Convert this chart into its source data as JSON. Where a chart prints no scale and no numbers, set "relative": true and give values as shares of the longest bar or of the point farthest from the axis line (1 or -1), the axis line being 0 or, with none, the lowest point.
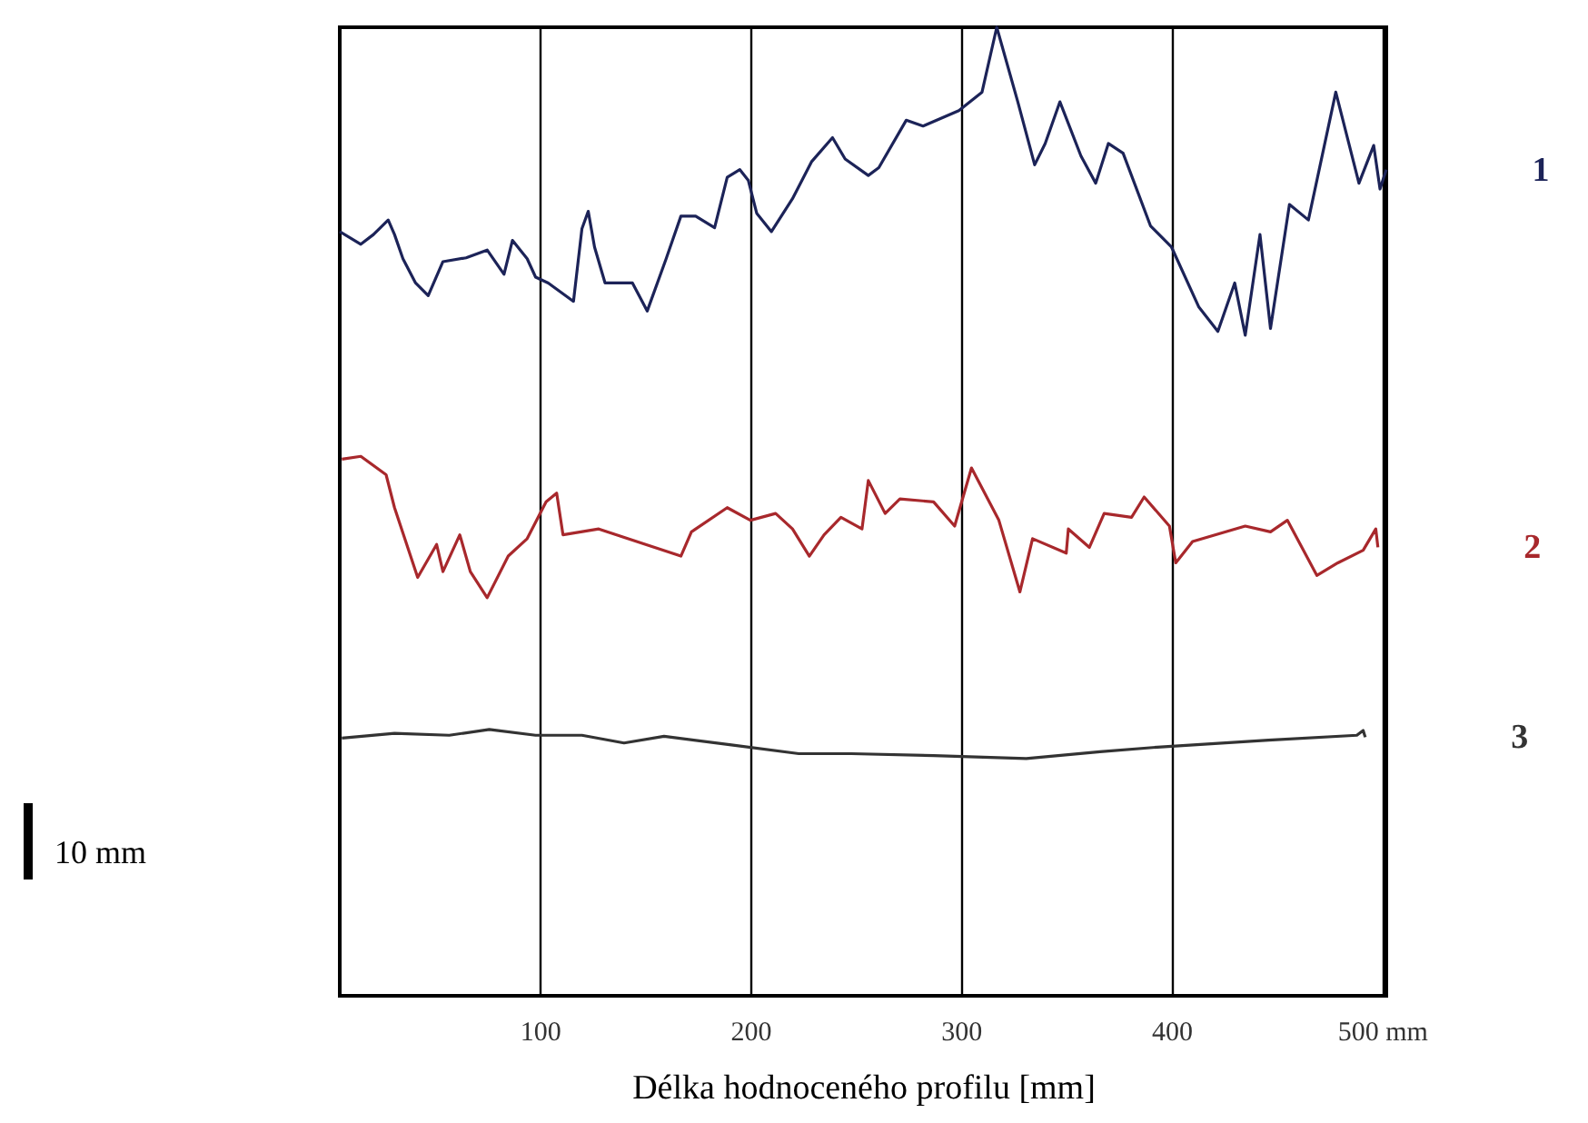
{
  "chart_data": {
    "type": "line",
    "relative": true,
    "xlabel": "Délka hodnoceného profilu [mm]",
    "xlim": [
      5,
      502
    ],
    "xticks": [
      100,
      200,
      300,
      400,
      {
        "value": 500,
        "label": "500 mm"
      }
    ],
    "grid": "x",
    "annotations": [
      "10 mm"
    ],
    "series": [
      {
        "name": "1",
        "color": "#1c2358",
        "x": [
          5,
          15,
          21,
          28,
          31,
          35,
          41,
          47,
          54,
          65,
          75,
          83,
          87,
          94,
          98,
          104,
          116,
          120,
          123,
          126,
          131,
          144,
          151,
          160,
          167,
          174,
          183,
          189,
          195,
          199,
          203,
          210,
          220,
          229,
          239,
          245,
          256,
          261,
          274,
          282,
          299,
          310,
          317,
          327,
          335,
          340,
          347,
          357,
          364,
          370,
          377,
          390,
          400,
          413,
          422,
          430,
          435,
          442,
          447,
          456,
          465,
          478,
          489,
          496,
          499,
          502
        ],
        "values": [
          0.789,
          0.776,
          0.786,
          0.801,
          0.786,
          0.761,
          0.736,
          0.723,
          0.758,
          0.762,
          0.77,
          0.745,
          0.78,
          0.761,
          0.742,
          0.736,
          0.717,
          0.792,
          0.81,
          0.773,
          0.736,
          0.736,
          0.707,
          0.761,
          0.805,
          0.805,
          0.793,
          0.845,
          0.853,
          0.842,
          0.808,
          0.789,
          0.823,
          0.861,
          0.886,
          0.864,
          0.847,
          0.855,
          0.904,
          0.898,
          0.914,
          0.933,
          1,
          0.923,
          0.858,
          0.88,
          0.923,
          0.867,
          0.839,
          0.88,
          0.87,
          0.795,
          0.773,
          0.711,
          0.686,
          0.736,
          0.682,
          0.786,
          0.689,
          0.817,
          0.801,
          0.933,
          0.839,
          0.878,
          0.833,
          0.853
        ]
      },
      {
        "name": "2",
        "color": "#a8282c",
        "x": [
          6,
          15,
          27,
          31,
          42,
          51,
          54,
          62,
          67,
          75,
          85,
          94,
          103,
          108,
          111,
          128,
          146,
          167,
          172,
          189,
          200,
          212,
          220,
          228,
          235,
          243,
          253,
          256,
          264,
          271,
          287,
          297,
          305,
          318,
          328,
          334,
          350,
          351,
          361,
          368,
          381,
          387,
          399,
          402,
          410,
          435,
          447,
          455,
          469,
          479,
          491,
          497,
          498
        ],
        "values": [
          0.554,
          0.557,
          0.538,
          0.504,
          0.432,
          0.466,
          0.438,
          0.476,
          0.438,
          0.411,
          0.454,
          0.472,
          0.51,
          0.519,
          0.476,
          0.482,
          0.469,
          0.454,
          0.479,
          0.504,
          0.491,
          0.498,
          0.482,
          0.454,
          0.476,
          0.494,
          0.482,
          0.532,
          0.498,
          0.513,
          0.51,
          0.485,
          0.545,
          0.491,
          0.417,
          0.472,
          0.457,
          0.482,
          0.463,
          0.498,
          0.494,
          0.515,
          0.485,
          0.447,
          0.469,
          0.485,
          0.479,
          0.491,
          0.434,
          0.447,
          0.46,
          0.482,
          0.463
        ]
      },
      {
        "name": "3",
        "color": "#333333",
        "x": [
          6,
          31,
          57,
          76,
          98,
          120,
          140,
          159,
          191,
          223,
          248,
          287,
          331,
          366,
          395,
          446,
          488,
          491,
          492
        ],
        "values": [
          0.266,
          0.271,
          0.269,
          0.275,
          0.269,
          0.269,
          0.261,
          0.268,
          0.259,
          0.25,
          0.25,
          0.248,
          0.245,
          0.252,
          0.257,
          0.264,
          0.269,
          0.274,
          0.267
        ]
      }
    ]
  }
}
